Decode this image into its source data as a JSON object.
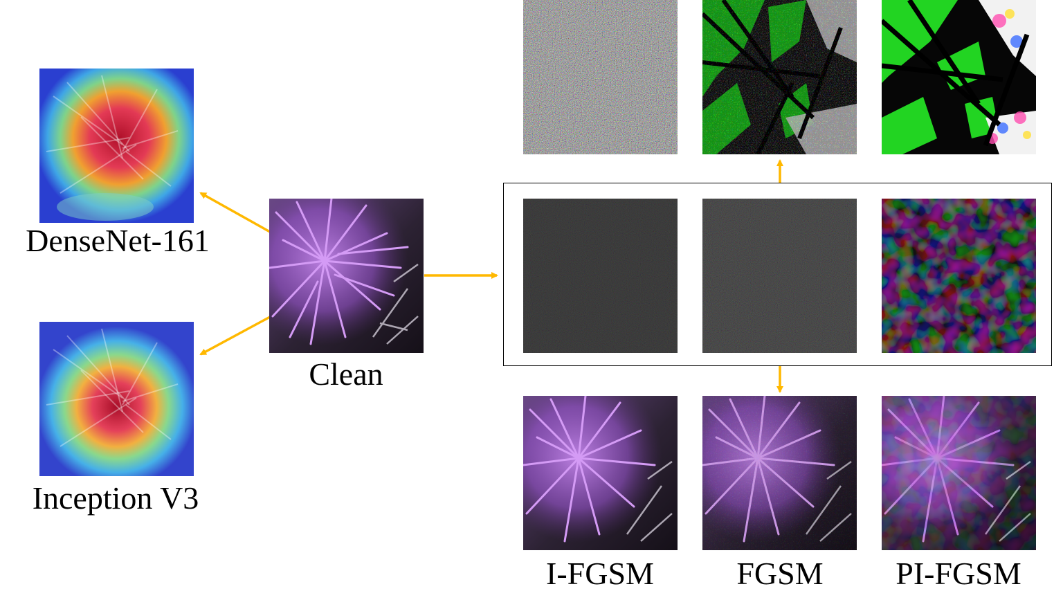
{
  "labels": {
    "densenet": "DenseNet-161",
    "inception": "Inception V3",
    "clean": "Clean",
    "ifgsm": "I-FGSM",
    "fgsm": "FGSM",
    "pifgsm": "PI-FGSM"
  },
  "colors": {
    "arrow": "#FFB800",
    "frame": "#000000",
    "thistle": "#B66BE6"
  }
}
